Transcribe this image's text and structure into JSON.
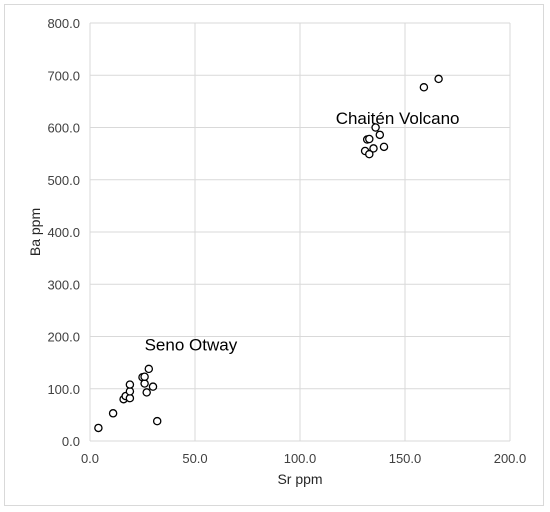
{
  "chart_data": {
    "type": "scatter",
    "title": "",
    "xlabel": "Sr ppm",
    "ylabel": "Ba ppm",
    "xlim": [
      0,
      200
    ],
    "ylim": [
      0,
      800
    ],
    "x_ticks": [
      "0.0",
      "50.0",
      "100.0",
      "150.0",
      "200.0"
    ],
    "y_ticks": [
      "0.0",
      "100.0",
      "200.0",
      "300.0",
      "400.0",
      "500.0",
      "600.0",
      "700.0",
      "800.0"
    ],
    "x_tick_values": [
      0,
      50,
      100,
      150,
      200
    ],
    "y_tick_values": [
      0,
      100,
      200,
      300,
      400,
      500,
      600,
      700,
      800
    ],
    "grid": true,
    "legend": "none",
    "marker": {
      "shape": "circle",
      "fill": "#ffffff",
      "stroke": "#000000"
    },
    "gridline_color": "#d9d9d9",
    "annotations": [
      {
        "text": "Chaitén Volcano",
        "x": 117,
        "y": 607
      },
      {
        "text": "Seno Otway",
        "x": 26,
        "y": 173
      }
    ],
    "points": [
      {
        "x": 4,
        "y": 25
      },
      {
        "x": 11,
        "y": 53
      },
      {
        "x": 16,
        "y": 80
      },
      {
        "x": 17,
        "y": 86
      },
      {
        "x": 19,
        "y": 82
      },
      {
        "x": 19,
        "y": 95
      },
      {
        "x": 19,
        "y": 108
      },
      {
        "x": 25,
        "y": 122
      },
      {
        "x": 26,
        "y": 110
      },
      {
        "x": 26,
        "y": 123
      },
      {
        "x": 27,
        "y": 93
      },
      {
        "x": 28,
        "y": 138
      },
      {
        "x": 30,
        "y": 104
      },
      {
        "x": 32,
        "y": 38
      },
      {
        "x": 131,
        "y": 555
      },
      {
        "x": 132,
        "y": 577
      },
      {
        "x": 133,
        "y": 549
      },
      {
        "x": 133,
        "y": 578
      },
      {
        "x": 135,
        "y": 560
      },
      {
        "x": 136,
        "y": 600
      },
      {
        "x": 138,
        "y": 586
      },
      {
        "x": 140,
        "y": 563
      },
      {
        "x": 159,
        "y": 677
      },
      {
        "x": 166,
        "y": 693
      }
    ]
  }
}
